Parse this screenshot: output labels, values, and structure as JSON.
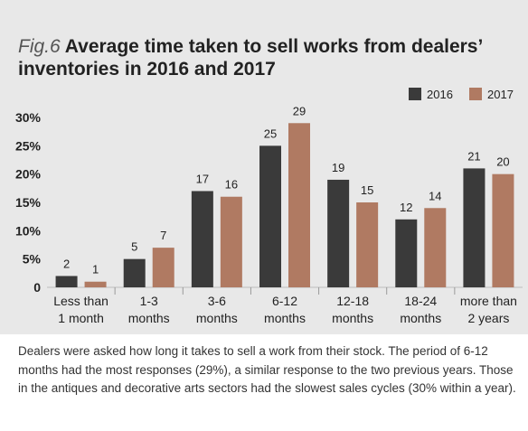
{
  "figure": {
    "label": "Fig.6",
    "title": "Average time taken to sell works from dealers’ inventories in 2016 and 2017"
  },
  "caption": "Dealers were asked how long it takes to sell a work from their stock. The period of 6-12 months had the most responses (29%), a similar response to the two previous years. Those in the antiques and decorative arts sectors had the slowest sales cycles (30% within a year).",
  "chart_data": {
    "type": "bar",
    "title": "Average time taken to sell works from dealers’ inventories in 2016 and 2017",
    "categories": [
      [
        "Less than",
        "1 month"
      ],
      [
        "1-3",
        "months"
      ],
      [
        "3-6",
        "months"
      ],
      [
        "6-12",
        "months"
      ],
      [
        "12-18",
        "months"
      ],
      [
        "18-24",
        "months"
      ],
      [
        "more than",
        "2 years"
      ]
    ],
    "series": [
      {
        "name": "2016",
        "color": "#3a3a3a",
        "values": [
          2,
          5,
          17,
          25,
          19,
          12,
          21
        ]
      },
      {
        "name": "2017",
        "color": "#b07a62",
        "values": [
          1,
          7,
          16,
          29,
          15,
          14,
          20
        ]
      }
    ],
    "yticks": [
      "0",
      "5%",
      "10%",
      "15%",
      "20%",
      "25%",
      "30%"
    ],
    "ylim": [
      0,
      30
    ],
    "xlabel": "",
    "ylabel": "",
    "legend_position": "top-right",
    "grid": false
  }
}
